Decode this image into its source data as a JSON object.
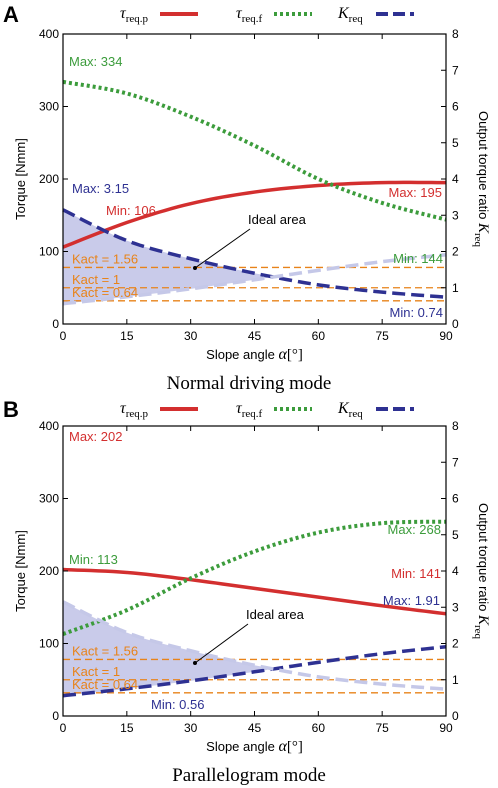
{
  "chart_data": [
    {
      "panel_label": "A",
      "type": "line",
      "title": "Normal driving mode",
      "xlabel": "Slope angle",
      "xlabel_symbol": "α",
      "xlabel_unit": "[°]",
      "ylabel_left": "Torque [Nmm]",
      "ylabel_right": "Output torque ratio",
      "ylabel_right_symbol": "K",
      "ylabel_right_sub": "req",
      "xlim": [
        0,
        90
      ],
      "ylim_left": [
        0,
        400
      ],
      "ylim_right": [
        0,
        8
      ],
      "xticks": [
        "0",
        "15",
        "30",
        "45",
        "60",
        "75",
        "90"
      ],
      "yticks_left": [
        "0",
        "100",
        "200",
        "300",
        "400"
      ],
      "yticks_right": [
        "0",
        "1",
        "2",
        "3",
        "4",
        "5",
        "6",
        "7",
        "8"
      ],
      "grid": false,
      "legend_placement": "top",
      "legend": [
        {
          "sym": "τ",
          "sub": "req.p"
        },
        {
          "sym": "τ",
          "sub": "req.f"
        },
        {
          "sym": "K",
          "sub": "req"
        }
      ],
      "x": [
        0,
        15,
        30,
        45,
        60,
        75,
        90
      ],
      "series": [
        {
          "axis": "left",
          "color": "#d32f2f",
          "style": "solid",
          "values": [
            106,
            140,
            166,
            182,
            191,
            195,
            195
          ]
        },
        {
          "axis": "left",
          "color": "#3c9c3c",
          "style": "dotted",
          "values": [
            334,
            318,
            286,
            246,
            200,
            167,
            144
          ]
        },
        {
          "axis": "right",
          "color": "#2e3192",
          "style": "dashed",
          "values": [
            3.15,
            2.3,
            1.8,
            1.4,
            1.08,
            0.88,
            0.74
          ]
        },
        {
          "axis": "right",
          "color": "#c5c8e8",
          "style": "dashed",
          "values": [
            0.56,
            0.75,
            0.97,
            1.22,
            1.48,
            1.72,
            1.91
          ]
        }
      ],
      "kact_lines": [
        1.56,
        1,
        0.64
      ],
      "kact_labels": [
        "Kact = 1.56",
        "Kact = 1",
        "Kact = 0.64"
      ],
      "kact_color": "#e8831a",
      "area_label": "Ideal area",
      "area_color": "#b7b9e3",
      "annotations": [
        {
          "text": "Max: 334",
          "color": "#3c9c3c"
        },
        {
          "text": "Max: 195",
          "color": "#d32f2f"
        },
        {
          "text": "Max: 3.15",
          "color": "#2e3192"
        },
        {
          "text": "Min: 106",
          "color": "#d32f2f"
        },
        {
          "text": "Min: 144",
          "color": "#3c9c3c"
        },
        {
          "text": "Min: 0.74",
          "color": "#2e3192"
        }
      ]
    },
    {
      "panel_label": "B",
      "type": "line",
      "title": "Parallelogram mode",
      "xlabel": "Slope angle",
      "xlabel_symbol": "α",
      "xlabel_unit": "[°]",
      "ylabel_left": "Torque [Nmm]",
      "ylabel_right": "Output torque ratio",
      "ylabel_right_symbol": "K",
      "ylabel_right_sub": "req",
      "xlim": [
        0,
        90
      ],
      "ylim_left": [
        0,
        400
      ],
      "ylim_right": [
        0,
        8
      ],
      "xticks": [
        "0",
        "15",
        "30",
        "45",
        "60",
        "75",
        "90"
      ],
      "yticks_left": [
        "0",
        "100",
        "200",
        "300",
        "400"
      ],
      "yticks_right": [
        "0",
        "1",
        "2",
        "3",
        "4",
        "5",
        "6",
        "7",
        "8"
      ],
      "grid": false,
      "legend_placement": "top",
      "legend": [
        {
          "sym": "τ",
          "sub": "req.p"
        },
        {
          "sym": "τ",
          "sub": "req.f"
        },
        {
          "sym": "K",
          "sub": "req"
        }
      ],
      "x": [
        0,
        15,
        30,
        45,
        60,
        75,
        90
      ],
      "series": [
        {
          "axis": "left",
          "color": "#d32f2f",
          "style": "solid",
          "values": [
            202,
            198,
            188,
            176,
            164,
            152,
            141
          ]
        },
        {
          "axis": "left",
          "color": "#3c9c3c",
          "style": "dotted",
          "values": [
            113,
            146,
            190,
            227,
            253,
            266,
            268
          ]
        },
        {
          "axis": "right",
          "color": "#2e3192",
          "style": "dashed",
          "values": [
            0.56,
            0.75,
            0.97,
            1.22,
            1.48,
            1.72,
            1.91
          ]
        },
        {
          "axis": "right",
          "color": "#c5c8e8",
          "style": "dashed",
          "values": [
            3.15,
            2.3,
            1.8,
            1.4,
            1.08,
            0.88,
            0.74
          ]
        }
      ],
      "kact_lines": [
        1.56,
        1,
        0.64
      ],
      "kact_labels": [
        "Kact = 1.56",
        "Kact = 1",
        "Kact = 0.64"
      ],
      "kact_color": "#e8831a",
      "area_label": "Ideal area",
      "area_color": "#b7b9e3",
      "annotations": [
        {
          "text": "Max: 202",
          "color": "#d32f2f"
        },
        {
          "text": "Max: 268",
          "color": "#3c9c3c"
        },
        {
          "text": "Max: 1.91",
          "color": "#2e3192"
        },
        {
          "text": "Min: 113",
          "color": "#3c9c3c"
        },
        {
          "text": "Min: 141",
          "color": "#d32f2f"
        },
        {
          "text": "Min: 0.56",
          "color": "#2e3192"
        }
      ]
    }
  ]
}
